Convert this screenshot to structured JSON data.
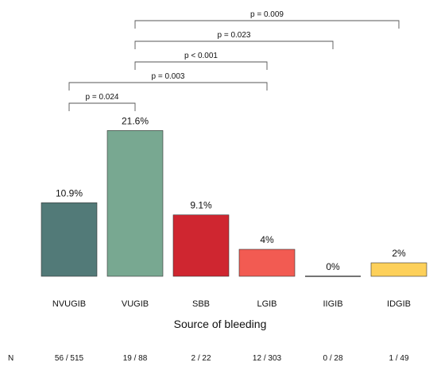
{
  "chart_data": {
    "type": "bar",
    "xlabel": "Source of bleeding",
    "ylabel": "",
    "ylim": [
      0,
      25
    ],
    "categories": [
      "NVUGIB",
      "VUGIB",
      "SBB",
      "LGIB",
      "IIGIB",
      "IDGIB"
    ],
    "values": [
      10.9,
      21.6,
      9.1,
      4.0,
      0.0,
      2.0
    ],
    "value_labels": [
      "10.9%",
      "21.6%",
      "9.1%",
      "4%",
      "0%",
      "2%"
    ],
    "colors": [
      "#527a78",
      "#78a891",
      "#cf2630",
      "#f25b52",
      "#555555",
      "#fdd05a"
    ],
    "n_row_label": "N",
    "n_values": [
      "56 / 515",
      "19 / 88",
      "2 / 22",
      "12 / 303",
      "0 / 28",
      "1 / 49"
    ],
    "comparisons": [
      {
        "from": 0,
        "to": 1,
        "label": "p = 0.024"
      },
      {
        "from": 0,
        "to": 3,
        "label": "p = 0.003"
      },
      {
        "from": 1,
        "to": 3,
        "label": "p < 0.001"
      },
      {
        "from": 1,
        "to": 4,
        "label": "p = 0.023"
      },
      {
        "from": 1,
        "to": 5,
        "label": "p = 0.009"
      }
    ]
  }
}
